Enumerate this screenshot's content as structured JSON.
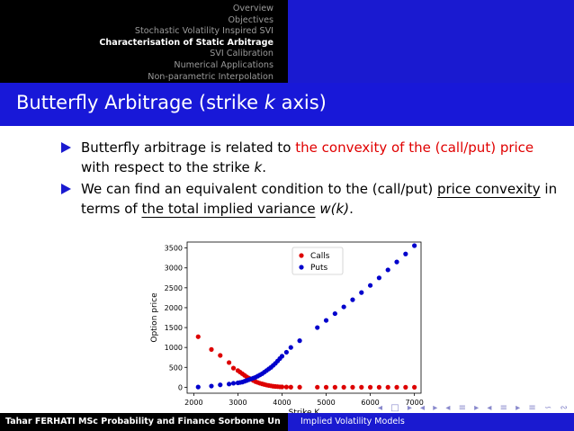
{
  "nav": {
    "items": [
      {
        "label": "Overview",
        "active": false
      },
      {
        "label": "Objectives",
        "active": false
      },
      {
        "label": "Stochastic Volatility Inspired SVI",
        "active": false
      },
      {
        "label": "Characterisation of Static Arbitrage",
        "active": true
      },
      {
        "label": "SVI Calibration",
        "active": false
      },
      {
        "label": "Numerical Applications",
        "active": false
      },
      {
        "label": "Non-parametric Interpolation",
        "active": false
      }
    ]
  },
  "frame": {
    "title_prefix": "Butterfly Arbitrage (strike ",
    "title_var": "k",
    "title_suffix": " axis)"
  },
  "bullets": {
    "b1_part1": "Butterfly arbitrage is related to ",
    "b1_red": "the convexity of the (call/put) price",
    "b1_part2": " with respect to the strike ",
    "b1_var": "k",
    "b1_end": ".",
    "b2_part1": "We can find an equivalent condition to the (call/put) ",
    "b2_ul1": "price convexity",
    "b2_part2": " in terms of ",
    "b2_ul2": "the total implied variance",
    "b2_part3": " ",
    "b2_var": "w(k)",
    "b2_end": "."
  },
  "footer": {
    "left": "Tahar FERHATI MSc Probability and Finance  Sorbonne Un",
    "right": "Implied Volatility Models"
  },
  "beamer_nav": "◂ □ ▸ ◂ ▸ ◂ ≡ ▸ ◂ ≡ ▸ ≡ ∽ ∾",
  "colors": {
    "calls": "#dd0000",
    "puts": "#0000cc",
    "header_blue": "#1818d8"
  },
  "chart_data": {
    "type": "scatter",
    "xlabel": "Strike K",
    "ylabel": "Option price",
    "xlim": [
      1850,
      7150
    ],
    "ylim": [
      -150,
      3650
    ],
    "xticks": [
      2000,
      3000,
      4000,
      5000,
      6000,
      7000
    ],
    "yticks": [
      0,
      500,
      1000,
      1500,
      2000,
      2500,
      3000,
      3500
    ],
    "legend": "top-center",
    "grid": false,
    "series": [
      {
        "name": "Calls",
        "x": [
          2100,
          2400,
          2600,
          2800,
          2900,
          3000,
          3050,
          3100,
          3150,
          3200,
          3250,
          3300,
          3350,
          3400,
          3450,
          3500,
          3550,
          3600,
          3650,
          3700,
          3750,
          3800,
          3850,
          3900,
          3950,
          4000,
          4100,
          4200,
          4400,
          4800,
          5000,
          5200,
          5400,
          5600,
          5800,
          6000,
          6200,
          6400,
          6600,
          6800,
          7000
        ],
        "y": [
          1270,
          950,
          800,
          620,
          480,
          420,
          380,
          340,
          300,
          260,
          230,
          200,
          170,
          140,
          120,
          100,
          85,
          70,
          55,
          45,
          35,
          25,
          20,
          15,
          10,
          8,
          5,
          3,
          2,
          1,
          0,
          0,
          0,
          0,
          0,
          0,
          0,
          0,
          0,
          0,
          0
        ]
      },
      {
        "name": "Puts",
        "x": [
          2100,
          2400,
          2600,
          2800,
          2900,
          3000,
          3050,
          3100,
          3150,
          3200,
          3250,
          3300,
          3350,
          3400,
          3450,
          3500,
          3550,
          3600,
          3650,
          3700,
          3750,
          3800,
          3850,
          3900,
          3950,
          4000,
          4100,
          4200,
          4400,
          4800,
          5000,
          5200,
          5400,
          5600,
          5800,
          6000,
          6200,
          6400,
          6600,
          6800,
          7000
        ],
        "y": [
          5,
          30,
          60,
          80,
          100,
          110,
          120,
          130,
          150,
          170,
          190,
          210,
          230,
          250,
          280,
          310,
          340,
          380,
          420,
          460,
          500,
          550,
          600,
          660,
          720,
          780,
          880,
          1000,
          1170,
          1500,
          1680,
          1850,
          2020,
          2200,
          2380,
          2560,
          2750,
          2950,
          3150,
          3350,
          3560
        ]
      }
    ]
  }
}
